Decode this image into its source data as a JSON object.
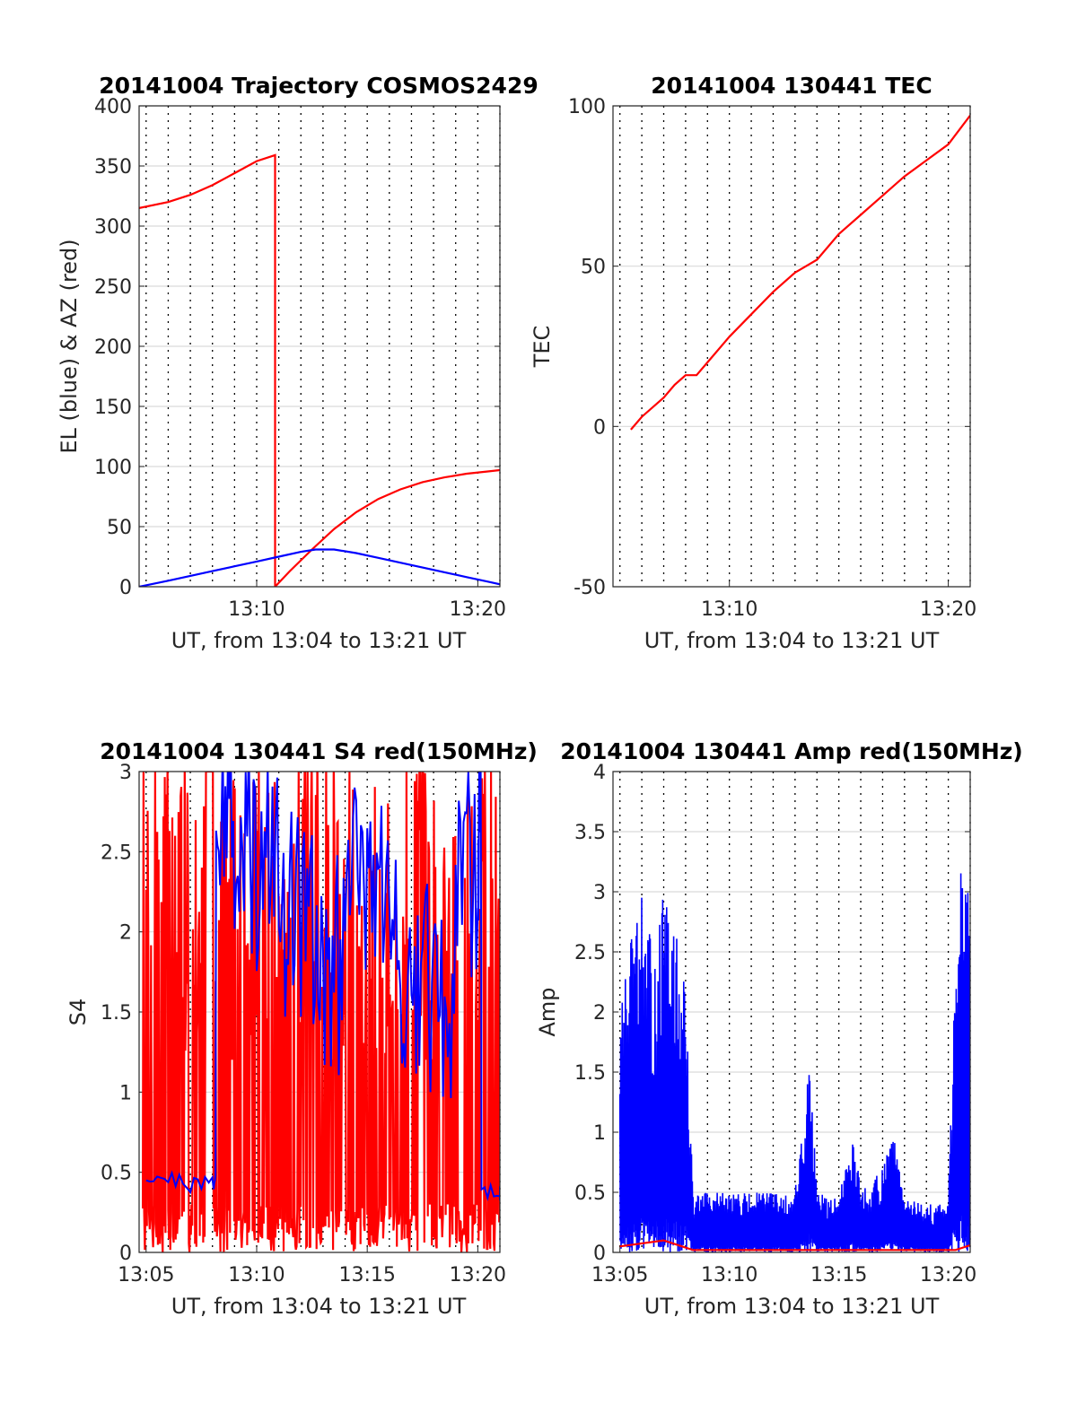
{
  "figure": {
    "colors": {
      "red": "#ff0000",
      "blue": "#0000ff",
      "grid": "#d9d9d9",
      "axis": "#262626",
      "vline": "#000000"
    }
  },
  "chart_data": [
    {
      "type": "line",
      "title": "20141004 Trajectory COSMOS2429",
      "xlabel": "UT, from 13:04 to 13:21 UT",
      "ylabel": "EL (blue) & AZ (red)",
      "xlim": [
        "13:04:41",
        "13:21:00"
      ],
      "ylim": [
        0,
        400
      ],
      "xticks": [
        "13:10",
        "13:20"
      ],
      "yticks": [
        "0",
        "50",
        "100",
        "150",
        "200",
        "250",
        "300",
        "350",
        "400"
      ],
      "grid": true,
      "series": [
        {
          "color": "red",
          "x": [
            "13:04:41",
            "13:06:00",
            "13:07:00",
            "13:08:00",
            "13:09:00",
            "13:10:00",
            "13:10:50",
            "13:10:50",
            "13:11:30",
            "13:12:30",
            "13:13:30",
            "13:14:30",
            "13:15:30",
            "13:16:30",
            "13:17:30",
            "13:18:30",
            "13:19:30",
            "13:20:30",
            "13:21:00"
          ],
          "y": [
            315,
            320,
            326,
            334,
            344,
            354,
            359,
            0,
            13,
            31,
            48,
            62,
            73,
            81,
            87,
            91,
            94,
            96,
            97
          ]
        },
        {
          "color": "blue",
          "x": [
            "13:04:41",
            "13:06:00",
            "13:07:00",
            "13:08:00",
            "13:09:00",
            "13:10:00",
            "13:11:00",
            "13:12:00",
            "13:12:40",
            "13:13:30",
            "13:14:30",
            "13:15:30",
            "13:16:30",
            "13:17:30",
            "13:18:30",
            "13:19:30",
            "13:20:30",
            "13:21:00"
          ],
          "y": [
            0,
            5,
            9,
            13,
            17,
            21,
            25,
            29,
            31,
            31,
            28,
            24,
            20,
            16,
            12,
            8,
            4,
            2
          ]
        }
      ]
    },
    {
      "type": "line",
      "title": "20141004 130441 TEC",
      "xlabel": "UT, from 13:04 to 13:21 UT",
      "ylabel": "TEC",
      "xlim": [
        "13:04:41",
        "13:21:00"
      ],
      "ylim": [
        -50,
        100
      ],
      "xticks": [
        "13:10",
        "13:20"
      ],
      "yticks": [
        "-50",
        "0",
        "50",
        "100"
      ],
      "grid": true,
      "series": [
        {
          "color": "red",
          "x": [
            "13:05:30",
            "13:06:00",
            "13:07:00",
            "13:07:30",
            "13:08:00",
            "13:08:30",
            "13:09:00",
            "13:10:00",
            "13:11:00",
            "13:12:00",
            "13:13:00",
            "13:14:00",
            "13:15:00",
            "13:16:00",
            "13:17:00",
            "13:18:00",
            "13:19:00",
            "13:20:00",
            "13:21:00"
          ],
          "y": [
            -1,
            3,
            9,
            13,
            16,
            16,
            20,
            28,
            35,
            42,
            48,
            52,
            60,
            66,
            72,
            78,
            83,
            88,
            97
          ]
        }
      ]
    },
    {
      "type": "line",
      "title": "20141004 130441 S4 red(150MHz)",
      "xlabel": "UT, from 13:04 to 13:21 UT",
      "ylabel": "S4",
      "xlim": [
        "13:04:41",
        "13:21:00"
      ],
      "ylim": [
        0,
        3
      ],
      "xticks": [
        "13:05",
        "13:10",
        "13:15",
        "13:20"
      ],
      "yticks": [
        "0",
        "0.5",
        "1",
        "1.5",
        "2",
        "2.5",
        "3"
      ],
      "grid": true,
      "series": [
        {
          "color": "red",
          "note": "dense fluctuations clipped between 0 and 3"
        },
        {
          "color": "blue",
          "x": [
            "13:05:00",
            "13:06:00",
            "13:07:00",
            "13:08:00",
            "13:08:10",
            "13:09:00",
            "13:10:00",
            "13:11:00",
            "13:12:00",
            "13:13:00",
            "13:14:00",
            "13:15:00",
            "13:16:00",
            "13:17:00",
            "13:18:00",
            "13:19:00",
            "13:20:00",
            "13:20:10",
            "13:21:00"
          ],
          "y": [
            0.48,
            0.45,
            0.42,
            0.45,
            2.8,
            2.7,
            2.6,
            2.3,
            2.2,
            2.0,
            2.5,
            2.4,
            2.0,
            1.8,
            1.8,
            2.5,
            2.8,
            0.4,
            0.38
          ]
        }
      ]
    },
    {
      "type": "line",
      "title": "20141004 130441 Amp red(150MHz)",
      "xlabel": "UT, from 13:04 to 13:21 UT",
      "ylabel": "Amp",
      "xlim": [
        "13:04:41",
        "13:21:00"
      ],
      "ylim": [
        0,
        4
      ],
      "xticks": [
        "13:05",
        "13:10",
        "13:15",
        "13:20"
      ],
      "yticks": [
        "0",
        "0.5",
        "1",
        "1.5",
        "2",
        "2.5",
        "3",
        "3.5",
        "4"
      ],
      "grid": true,
      "series": [
        {
          "color": "blue",
          "note": "amplitude envelope",
          "x": [
            "13:05:00",
            "13:05:30",
            "13:06:00",
            "13:06:30",
            "13:07:00",
            "13:07:30",
            "13:08:00",
            "13:08:20",
            "13:09:00",
            "13:10:00",
            "13:11:00",
            "13:12:00",
            "13:13:00",
            "13:13:40",
            "13:14:00",
            "13:15:00",
            "13:15:40",
            "13:16:00",
            "13:17:00",
            "13:17:30",
            "13:18:00",
            "13:19:00",
            "13:20:00",
            "13:20:20",
            "13:20:40",
            "13:21:00"
          ],
          "y": [
            2.0,
            2.6,
            3.0,
            2.5,
            3.0,
            2.7,
            2.3,
            0.5,
            0.5,
            0.5,
            0.5,
            0.5,
            0.5,
            1.65,
            0.5,
            0.45,
            1.1,
            0.5,
            0.7,
            1.0,
            0.45,
            0.4,
            0.4,
            2.5,
            3.5,
            2.9
          ]
        },
        {
          "color": "red",
          "note": "near zero with small bumps",
          "x": [
            "13:05:00",
            "13:07:00",
            "13:08:20",
            "13:20:20",
            "13:21:00"
          ],
          "y": [
            0.05,
            0.1,
            0.02,
            0.02,
            0.06
          ]
        }
      ]
    }
  ]
}
